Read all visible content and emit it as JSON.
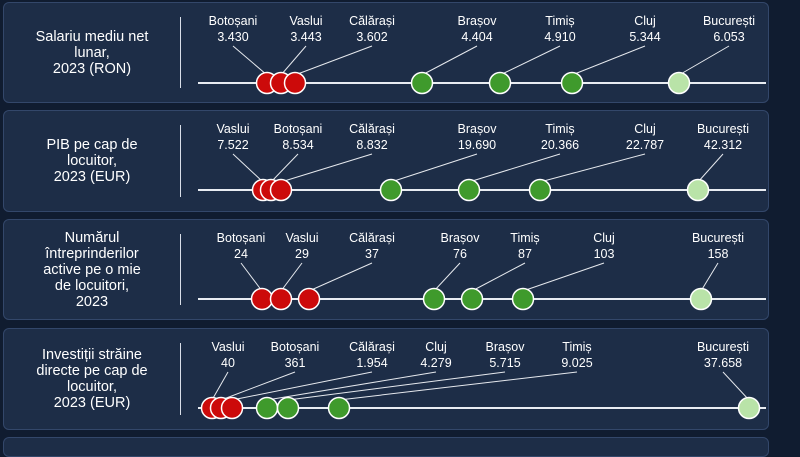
{
  "colors": {
    "background": "#101c30",
    "panel": "#1d2d47",
    "line": "#e8ecf2",
    "red": "#cc0a0a",
    "green": "#3f9a2c",
    "light_green": "#b9e3a8"
  },
  "chart_data": [
    {
      "type": "scatter",
      "title_lines": [
        "Salariu mediu net",
        "lunar,",
        "2023 (RON)"
      ],
      "points": [
        {
          "label": "Botoșani",
          "value_label": "3.430",
          "value": 3430,
          "color": "red"
        },
        {
          "label": "Vaslui",
          "value_label": "3.443",
          "value": 3443,
          "color": "red"
        },
        {
          "label": "Călărași",
          "value_label": "3.602",
          "value": 3602,
          "color": "red"
        },
        {
          "label": "Brașov",
          "value_label": "4.404",
          "value": 4404,
          "color": "green"
        },
        {
          "label": "Timiș",
          "value_label": "4.910",
          "value": 4910,
          "color": "green"
        },
        {
          "label": "Cluj",
          "value_label": "5.344",
          "value": 5344,
          "color": "green"
        },
        {
          "label": "București",
          "value_label": "6.053",
          "value": 6053,
          "color": "light_green"
        }
      ]
    },
    {
      "type": "scatter",
      "title_lines": [
        "PIB pe cap de",
        "locuitor,",
        "2023 (EUR)"
      ],
      "points": [
        {
          "label": "Vaslui",
          "value_label": "7.522",
          "value": 7522,
          "color": "red"
        },
        {
          "label": "Botoșani",
          "value_label": "8.534",
          "value": 8534,
          "color": "red"
        },
        {
          "label": "Călărași",
          "value_label": "8.832",
          "value": 8832,
          "color": "red"
        },
        {
          "label": "Brașov",
          "value_label": "19.690",
          "value": 19690,
          "color": "green"
        },
        {
          "label": "Timiș",
          "value_label": "20.366",
          "value": 20366,
          "color": "green"
        },
        {
          "label": "Cluj",
          "value_label": "22.787",
          "value": 22787,
          "color": "green"
        },
        {
          "label": "București",
          "value_label": "42.312",
          "value": 42312,
          "color": "light_green"
        }
      ]
    },
    {
      "type": "scatter",
      "title_lines": [
        "Numărul",
        "întreprinderilor",
        "active pe o mie",
        "de locuitori,",
        "2023"
      ],
      "points": [
        {
          "label": "Botoșani",
          "value_label": "24",
          "value": 24,
          "color": "red"
        },
        {
          "label": "Vaslui",
          "value_label": "29",
          "value": 29,
          "color": "red"
        },
        {
          "label": "Călărași",
          "value_label": "37",
          "value": 37,
          "color": "red"
        },
        {
          "label": "Brașov",
          "value_label": "76",
          "value": 76,
          "color": "green"
        },
        {
          "label": "Timiș",
          "value_label": "87",
          "value": 87,
          "color": "green"
        },
        {
          "label": "Cluj",
          "value_label": "103",
          "value": 103,
          "color": "green"
        },
        {
          "label": "București",
          "value_label": "158",
          "value": 158,
          "color": "light_green"
        }
      ]
    },
    {
      "type": "scatter",
      "title_lines": [
        "Investiții străine",
        "directe pe cap de",
        "locuitor,",
        "2023 (EUR)"
      ],
      "points": [
        {
          "label": "Vaslui",
          "value_label": "40",
          "value": 40,
          "color": "red"
        },
        {
          "label": "Botoșani",
          "value_label": "361",
          "value": 361,
          "color": "red"
        },
        {
          "label": "Călărași",
          "value_label": "1.954",
          "value": 1954,
          "color": "red"
        },
        {
          "label": "Cluj",
          "value_label": "4.279",
          "value": 4279,
          "color": "green"
        },
        {
          "label": "Brașov",
          "value_label": "5.715",
          "value": 5715,
          "color": "green"
        },
        {
          "label": "Timiș",
          "value_label": "9.025",
          "value": 9025,
          "color": "green"
        },
        {
          "label": "București",
          "value_label": "37.658",
          "value": 37658,
          "color": "light_green"
        }
      ]
    }
  ]
}
